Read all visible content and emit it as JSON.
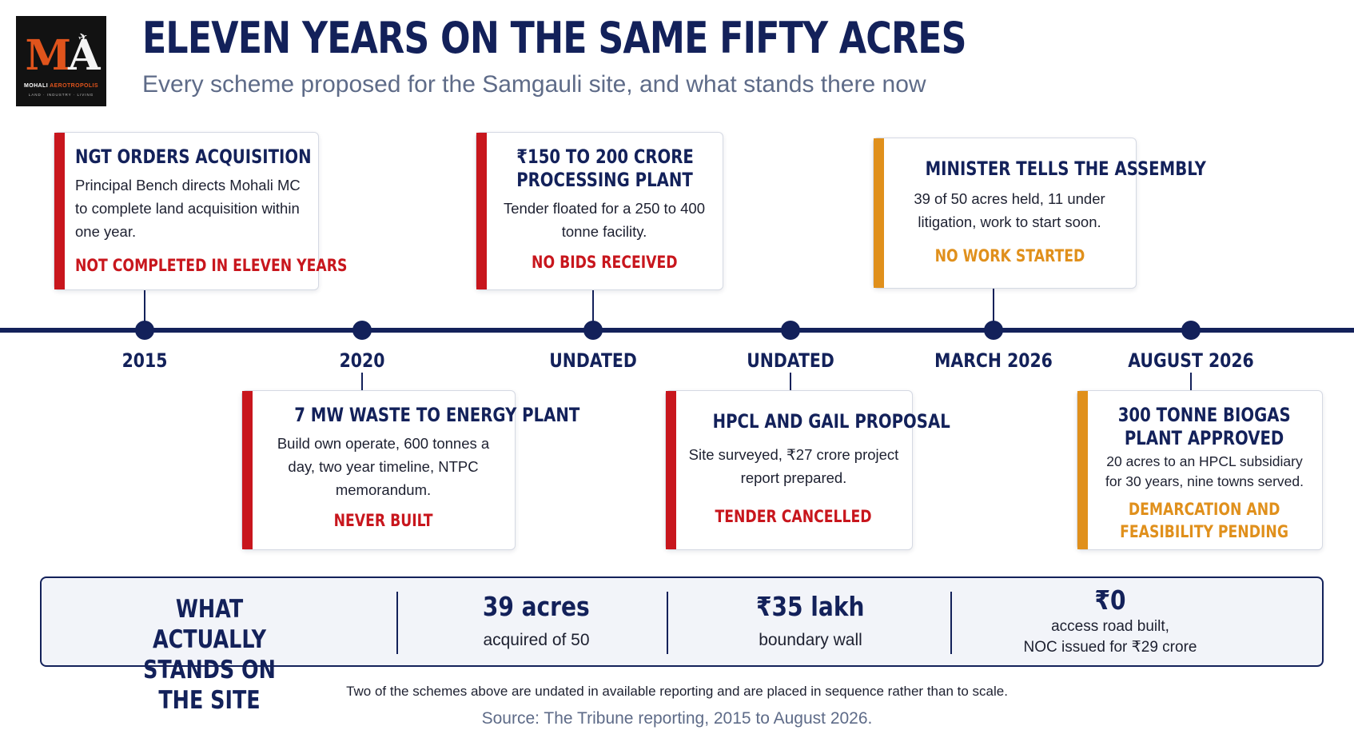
{
  "logo": {
    "mark_m": "M",
    "mark_a": "A",
    "name_part1": "MOHALI",
    "name_part2": "AEROTROPOLIS",
    "tagline": "LAND · INDUSTRY · LIVING"
  },
  "header": {
    "title": "ELEVEN YEARS ON THE SAME FIFTY ACRES",
    "subtitle": "Every scheme proposed for the Samgauli site, and what stands there now"
  },
  "timeline": {
    "labels": [
      "2015",
      "2020",
      "UNDATED",
      "UNDATED",
      "MARCH 2026",
      "AUGUST 2026"
    ],
    "events": [
      {
        "title": "NGT ORDERS ACQUISITION",
        "description": "Principal Bench directs Mohali MC to complete land acquisition within one year.",
        "status": "NOT COMPLETED IN ELEVEN YEARS",
        "status_color": "#c8161d"
      },
      {
        "title": "7 MW WASTE TO ENERGY PLANT",
        "description": "Build own operate, 600 tonnes a day, two year timeline, NTPC memorandum.",
        "status": "NEVER BUILT",
        "status_color": "#c8161d"
      },
      {
        "title_line1": "₹150 TO 200 CRORE",
        "title_line2": "PROCESSING PLANT",
        "description": "Tender floated for a 250 to 400 tonne facility.",
        "status": "NO BIDS RECEIVED",
        "status_color": "#c8161d"
      },
      {
        "title": "HPCL AND GAIL PROPOSAL",
        "description": "Site surveyed, ₹27 crore project report prepared.",
        "status": "TENDER CANCELLED",
        "status_color": "#c8161d"
      },
      {
        "title": "MINISTER TELLS THE ASSEMBLY",
        "description": "39 of 50 acres held, 11 under litigation, work to start soon.",
        "status": "NO WORK STARTED",
        "status_color": "#e0901c"
      },
      {
        "title_line1": "300 TONNE BIOGAS",
        "title_line2": "PLANT APPROVED",
        "description": "20 acres to an HPCL subsidiary for 30 years, nine towns served.",
        "status_line1": "DEMARCATION AND",
        "status_line2": "FEASIBILITY PENDING",
        "status_color": "#e0901c"
      }
    ]
  },
  "summary": {
    "heading_line1": "WHAT ACTUALLY",
    "heading_line2": "STANDS ON THE SITE",
    "stats": [
      {
        "value": "39 acres",
        "desc": "acquired of 50"
      },
      {
        "value": "₹35 lakh",
        "desc": "boundary wall"
      },
      {
        "value": "₹0",
        "desc_line1": "access road built,",
        "desc_line2": "NOC issued for ₹29 crore"
      }
    ]
  },
  "footer": {
    "note": "Two of the schemes above are undated in available reporting and are placed in sequence rather than to scale.",
    "source": "Source: The Tribune reporting, 2015 to August 2026."
  }
}
